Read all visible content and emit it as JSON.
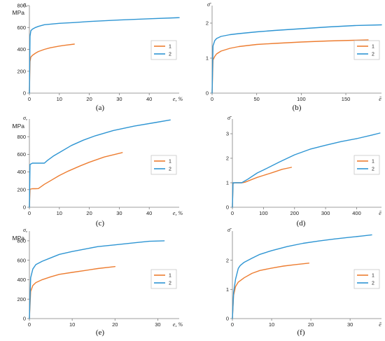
{
  "colors": {
    "series1": "#ED7D31",
    "series2": "#2E95D3",
    "axis": "#7f7f7f",
    "text": "#222222"
  },
  "chart_data": [
    {
      "type": "line",
      "caption": "(a)",
      "ylabel": "σ,",
      "yunit": "MPa",
      "xlabel": "e, %",
      "xlim": [
        0,
        50
      ],
      "ylim": [
        0,
        800
      ],
      "xticks": [
        0,
        10,
        20,
        30,
        40
      ],
      "yticks": [
        0,
        200,
        400,
        600,
        800
      ],
      "series": [
        {
          "name": "1",
          "x": [
            0,
            0.2,
            0.5,
            1,
            2,
            3,
            5,
            7,
            10,
            12,
            15
          ],
          "y": [
            0,
            290,
            330,
            345,
            365,
            380,
            400,
            415,
            430,
            438,
            448
          ]
        },
        {
          "name": "2",
          "x": [
            0,
            0.2,
            0.5,
            1,
            2,
            3,
            5,
            10,
            15,
            20,
            30,
            40,
            50
          ],
          "y": [
            0,
            520,
            570,
            585,
            600,
            610,
            625,
            638,
            645,
            655,
            668,
            680,
            690
          ]
        }
      ]
    },
    {
      "type": "line",
      "caption": "(b)",
      "ylabel": "σ̄",
      "xlabel": "ē",
      "xlim": [
        0,
        190
      ],
      "ylim": [
        0,
        2.5
      ],
      "xticks": [
        0,
        50,
        100,
        150
      ],
      "yticks": [
        0,
        1,
        2
      ],
      "series": [
        {
          "name": "1",
          "x": [
            0,
            1,
            3,
            5,
            10,
            20,
            30,
            50,
            70,
            100,
            130,
            160,
            175
          ],
          "y": [
            0,
            0.95,
            1.05,
            1.12,
            1.2,
            1.28,
            1.33,
            1.39,
            1.42,
            1.46,
            1.49,
            1.51,
            1.52
          ]
        },
        {
          "name": "2",
          "x": [
            0,
            1,
            3,
            5,
            10,
            20,
            30,
            50,
            70,
            100,
            130,
            160,
            190
          ],
          "y": [
            0,
            1.35,
            1.5,
            1.56,
            1.62,
            1.67,
            1.7,
            1.75,
            1.79,
            1.84,
            1.89,
            1.93,
            1.95
          ]
        }
      ]
    },
    {
      "type": "line",
      "caption": "(c)",
      "ylabel": "σ,",
      "yunit": "MPa",
      "xlabel": "e, %",
      "xlim": [
        0,
        50
      ],
      "ylim": [
        0,
        1000
      ],
      "xticks": [
        0,
        10,
        20,
        30,
        40
      ],
      "yticks": [
        0,
        200,
        400,
        600,
        800
      ],
      "series": [
        {
          "name": "1",
          "x": [
            0,
            0.2,
            1,
            2,
            3,
            5,
            7,
            10,
            13,
            17,
            20,
            25,
            31
          ],
          "y": [
            0,
            205,
            210,
            210,
            212,
            260,
            300,
            360,
            410,
            470,
            510,
            570,
            620
          ]
        },
        {
          "name": "2",
          "x": [
            0,
            0.2,
            1,
            3,
            5,
            6,
            8,
            10,
            14,
            18,
            22,
            28,
            35,
            42,
            47
          ],
          "y": [
            0,
            485,
            500,
            500,
            500,
            530,
            580,
            620,
            700,
            760,
            810,
            870,
            920,
            960,
            990
          ]
        }
      ]
    },
    {
      "type": "line",
      "caption": "(d)",
      "ylabel": "σ̄",
      "xlabel": "ē",
      "xlim": [
        0,
        480
      ],
      "ylim": [
        0,
        3.6
      ],
      "xticks": [
        0,
        100,
        200,
        300,
        400
      ],
      "yticks": [
        0,
        1,
        2,
        3
      ],
      "series": [
        {
          "name": "1",
          "x": [
            0,
            2,
            10,
            30,
            40,
            60,
            80,
            100,
            130,
            160,
            190
          ],
          "y": [
            0,
            0.98,
            1.0,
            1.0,
            1.02,
            1.12,
            1.22,
            1.3,
            1.42,
            1.55,
            1.63
          ]
        },
        {
          "name": "2",
          "x": [
            0,
            2,
            10,
            30,
            50,
            80,
            100,
            150,
            200,
            250,
            300,
            350,
            400,
            450,
            475
          ],
          "y": [
            0,
            1.0,
            1.0,
            1.0,
            1.15,
            1.4,
            1.52,
            1.84,
            2.14,
            2.37,
            2.53,
            2.68,
            2.8,
            2.95,
            3.03
          ]
        }
      ]
    },
    {
      "type": "line",
      "caption": "(e)",
      "ylabel": "σ,",
      "yunit": "MPa",
      "xlabel": "e, %",
      "xlim": [
        0,
        35
      ],
      "ylim": [
        0,
        900
      ],
      "xticks": [
        0,
        10,
        20,
        30
      ],
      "yticks": [
        0,
        200,
        400,
        600,
        800
      ],
      "series": [
        {
          "name": "1",
          "x": [
            0,
            0.3,
            0.8,
            1.5,
            3,
            5,
            7,
            10,
            13,
            16,
            20
          ],
          "y": [
            0,
            280,
            340,
            370,
            400,
            430,
            455,
            475,
            495,
            515,
            535
          ]
        },
        {
          "name": "2",
          "x": [
            0,
            0.3,
            0.8,
            1.5,
            3,
            5,
            7,
            10,
            13,
            16,
            20,
            25,
            28,
            31.5
          ],
          "y": [
            0,
            420,
            510,
            555,
            590,
            625,
            660,
            690,
            715,
            740,
            758,
            782,
            795,
            800
          ]
        }
      ]
    },
    {
      "type": "line",
      "caption": "(f)",
      "ylabel": "σ̄",
      "xlabel": "ē",
      "xlim": [
        0,
        38
      ],
      "ylim": [
        0,
        3
      ],
      "xticks": [
        0,
        10,
        20,
        30
      ],
      "yticks": [
        0,
        1,
        2
      ],
      "series": [
        {
          "name": "1",
          "x": [
            0,
            0.3,
            0.8,
            1.5,
            3,
            5,
            7,
            10,
            13,
            16,
            19.5
          ],
          "y": [
            0,
            0.8,
            1.1,
            1.25,
            1.4,
            1.55,
            1.65,
            1.73,
            1.8,
            1.85,
            1.9
          ]
        },
        {
          "name": "2",
          "x": [
            0,
            0.3,
            0.8,
            1.5,
            2,
            3,
            5,
            7,
            10,
            14,
            18,
            22,
            26,
            30,
            33,
            35.5
          ],
          "y": [
            0,
            0.9,
            1.35,
            1.72,
            1.82,
            1.93,
            2.07,
            2.2,
            2.33,
            2.47,
            2.58,
            2.66,
            2.73,
            2.79,
            2.83,
            2.87
          ]
        }
      ]
    }
  ]
}
